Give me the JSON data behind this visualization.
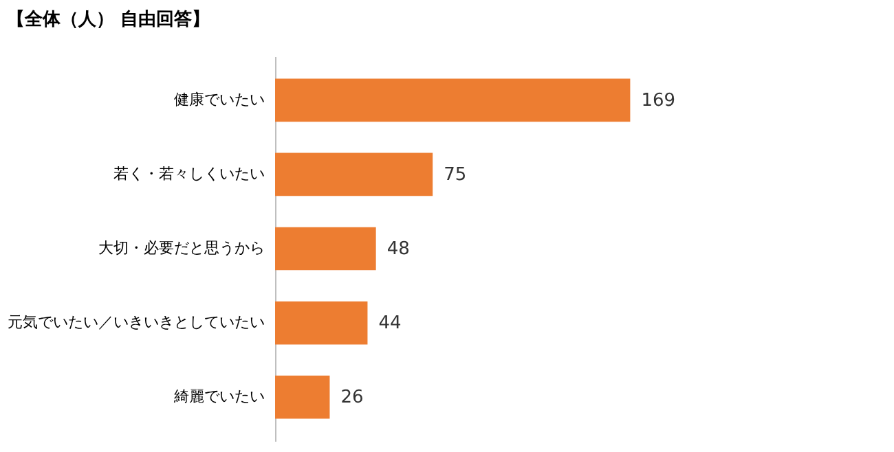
{
  "chart_data": {
    "type": "bar",
    "orientation": "horizontal",
    "title": "【全体（人） 自由回答】",
    "categories": [
      "健康でいたい",
      "若く・若々しくいたい",
      "大切・必要だと思うから",
      "元気でいたい／いきいきとしていたい",
      "綺麗でいたい"
    ],
    "values": [
      169,
      75,
      48,
      44,
      26
    ],
    "color": "#ed7d31",
    "data_labels": true,
    "tick_labels": "y"
  }
}
